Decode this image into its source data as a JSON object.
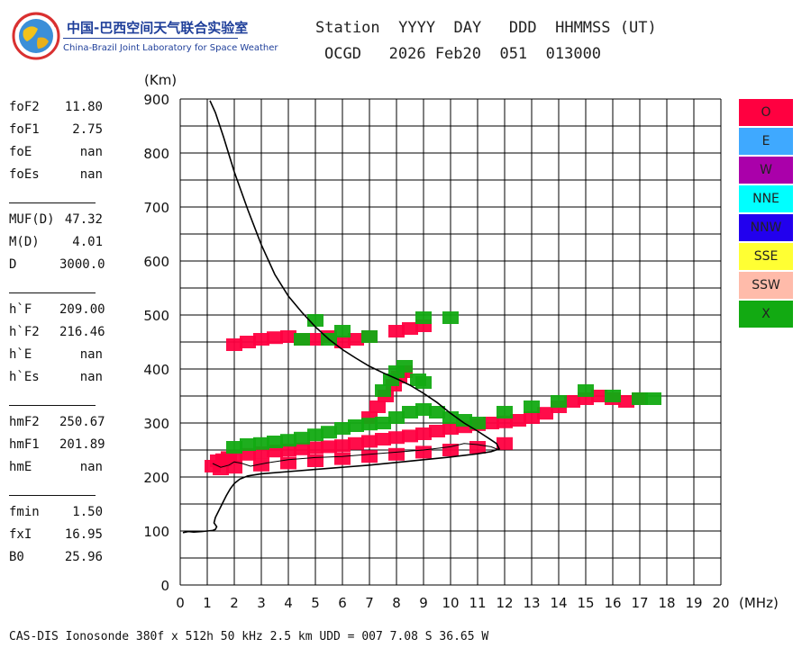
{
  "logo": {
    "cn": "中国-巴西空间天气联合实验室",
    "en": "China-Brazil Joint Laboratory for Space Weather"
  },
  "header": {
    "line1": "Station  YYYY  DAY   DDD  HHMMSS (UT)",
    "line2": "OCGD   2026 Feb20  051  013000"
  },
  "params": [
    {
      "name": "foF2",
      "value": "11.80"
    },
    {
      "name": "foF1",
      "value": "2.75"
    },
    {
      "name": "foE",
      "value": "nan"
    },
    {
      "name": "foEs",
      "value": "nan"
    },
    {
      "name": "MUF(D)",
      "value": "47.32"
    },
    {
      "name": "M(D)",
      "value": "4.01"
    },
    {
      "name": "D",
      "value": "3000.0"
    },
    {
      "name": "h`F",
      "value": "209.00"
    },
    {
      "name": "h`F2",
      "value": "216.46"
    },
    {
      "name": "h`E",
      "value": "nan"
    },
    {
      "name": "h`Es",
      "value": "nan"
    },
    {
      "name": "hmF2",
      "value": "250.67"
    },
    {
      "name": "hmF1",
      "value": "201.89"
    },
    {
      "name": "hmE",
      "value": "nan"
    },
    {
      "name": "fmin",
      "value": "1.50"
    },
    {
      "name": "fxI",
      "value": "16.95"
    },
    {
      "name": "B0",
      "value": "25.96"
    }
  ],
  "legend": [
    {
      "label": "O",
      "color": "#ff0040"
    },
    {
      "label": "E",
      "color": "#3fa9ff"
    },
    {
      "label": "W",
      "color": "#aa00aa"
    },
    {
      "label": "NNE",
      "color": "#00ffff"
    },
    {
      "label": "NNW",
      "color": "#2200ee"
    },
    {
      "label": "SSE",
      "color": "#ffff33"
    },
    {
      "label": "SSW",
      "color": "#ffbbaa"
    },
    {
      "label": "X",
      "color": "#12aa12"
    }
  ],
  "footer": "CAS-DIS Ionosonde 380f x 512h 50 kHz 2.5 km UDD = 007 7.08 S 36.65 W",
  "chart_data": {
    "type": "scatter",
    "xlabel": "(MHz)",
    "ylabel": "(Km)",
    "xlim": [
      0,
      20
    ],
    "ylim": [
      0,
      900
    ],
    "x_ticks": [
      0,
      1,
      2,
      3,
      4,
      5,
      6,
      7,
      8,
      9,
      10,
      11,
      12,
      13,
      14,
      15,
      16,
      17,
      18,
      19,
      20
    ],
    "y_ticks": [
      0,
      100,
      200,
      300,
      400,
      500,
      600,
      700,
      800,
      900
    ],
    "grid": true,
    "legend_position": "right",
    "series": [
      {
        "name": "O",
        "kind": "echo-trace",
        "color": "#ff0040",
        "points": [
          [
            1.2,
            220
          ],
          [
            1.4,
            230
          ],
          [
            1.6,
            232
          ],
          [
            1.8,
            236
          ],
          [
            2.0,
            238
          ],
          [
            2.5,
            242
          ],
          [
            3.0,
            245
          ],
          [
            3.5,
            248
          ],
          [
            4.0,
            250
          ],
          [
            4.5,
            252
          ],
          [
            5.0,
            254
          ],
          [
            5.5,
            256
          ],
          [
            6.0,
            258
          ],
          [
            6.5,
            262
          ],
          [
            7.0,
            266
          ],
          [
            7.5,
            270
          ],
          [
            8.0,
            273
          ],
          [
            8.5,
            276
          ],
          [
            9.0,
            280
          ],
          [
            9.5,
            285
          ],
          [
            10.0,
            290
          ],
          [
            10.5,
            293
          ],
          [
            11.0,
            297
          ],
          [
            11.5,
            300
          ],
          [
            12.0,
            302
          ],
          [
            12.5,
            305
          ],
          [
            13.0,
            310
          ],
          [
            13.5,
            318
          ],
          [
            14.0,
            330
          ],
          [
            14.5,
            340
          ],
          [
            15.0,
            345
          ],
          [
            15.5,
            350
          ],
          [
            16.0,
            345
          ],
          [
            16.5,
            340
          ],
          [
            17.0,
            345
          ],
          [
            1.5,
            215
          ],
          [
            2.0,
            218
          ],
          [
            3.0,
            222
          ],
          [
            4.0,
            226
          ],
          [
            5.0,
            230
          ],
          [
            6.0,
            234
          ],
          [
            7.0,
            238
          ],
          [
            8.0,
            242
          ],
          [
            9.0,
            246
          ],
          [
            10.0,
            250
          ],
          [
            11.0,
            255
          ],
          [
            12.0,
            262
          ],
          [
            7.0,
            310
          ],
          [
            7.3,
            330
          ],
          [
            7.6,
            350
          ],
          [
            7.9,
            370
          ],
          [
            8.1,
            385
          ],
          [
            8.3,
            395
          ],
          [
            2.0,
            445
          ],
          [
            2.5,
            450
          ],
          [
            3.0,
            455
          ],
          [
            3.5,
            458
          ],
          [
            4.0,
            460
          ],
          [
            4.5,
            455
          ],
          [
            5.0,
            455
          ],
          [
            5.5,
            460
          ],
          [
            6.0,
            450
          ],
          [
            6.5,
            455
          ],
          [
            7.0,
            460
          ],
          [
            8.0,
            470
          ],
          [
            8.5,
            475
          ],
          [
            9.0,
            480
          ]
        ]
      },
      {
        "name": "X",
        "kind": "echo-trace",
        "color": "#12aa12",
        "points": [
          [
            2.0,
            255
          ],
          [
            2.5,
            260
          ],
          [
            3.0,
            262
          ],
          [
            3.5,
            265
          ],
          [
            4.0,
            268
          ],
          [
            4.5,
            272
          ],
          [
            5.0,
            278
          ],
          [
            5.5,
            283
          ],
          [
            6.0,
            290
          ],
          [
            6.5,
            295
          ],
          [
            7.0,
            298
          ],
          [
            7.5,
            300
          ],
          [
            8.0,
            310
          ],
          [
            8.5,
            320
          ],
          [
            9.0,
            325
          ],
          [
            9.5,
            320
          ],
          [
            10.0,
            310
          ],
          [
            10.5,
            305
          ],
          [
            11.0,
            300
          ],
          [
            12.0,
            320
          ],
          [
            13.0,
            330
          ],
          [
            14.0,
            340
          ],
          [
            15.0,
            360
          ],
          [
            16.0,
            350
          ],
          [
            17.0,
            345
          ],
          [
            17.5,
            345
          ],
          [
            7.5,
            360
          ],
          [
            7.8,
            380
          ],
          [
            8.0,
            395
          ],
          [
            8.3,
            405
          ],
          [
            8.8,
            380
          ],
          [
            9.0,
            375
          ],
          [
            4.5,
            455
          ],
          [
            5.0,
            490
          ],
          [
            5.5,
            455
          ],
          [
            6.0,
            470
          ],
          [
            7.0,
            460
          ],
          [
            9.0,
            495
          ],
          [
            10.0,
            495
          ]
        ]
      }
    ],
    "profile": {
      "name": "virtual-height curve",
      "color": "#000000",
      "points": [
        [
          0.1,
          97
        ],
        [
          0.3,
          99
        ],
        [
          0.5,
          98
        ],
        [
          0.8,
          99
        ],
        [
          1.0,
          100
        ],
        [
          1.2,
          101
        ],
        [
          1.3,
          103
        ],
        [
          1.35,
          108
        ],
        [
          1.25,
          115
        ],
        [
          1.3,
          125
        ],
        [
          1.4,
          135
        ],
        [
          1.55,
          150
        ],
        [
          1.7,
          165
        ],
        [
          1.85,
          178
        ],
        [
          2.0,
          188
        ],
        [
          2.2,
          196
        ],
        [
          2.5,
          202
        ],
        [
          3.0,
          206
        ],
        [
          4.0,
          210
        ],
        [
          5.0,
          214
        ],
        [
          6.0,
          218
        ],
        [
          7.0,
          222
        ],
        [
          8.0,
          227
        ],
        [
          9.0,
          232
        ],
        [
          10.0,
          237
        ],
        [
          11.0,
          243
        ],
        [
          11.5,
          247
        ],
        [
          11.8,
          252
        ],
        [
          11.7,
          262
        ],
        [
          11.4,
          272
        ],
        [
          11.0,
          285
        ],
        [
          10.5,
          300
        ],
        [
          10.0,
          318
        ],
        [
          9.5,
          338
        ],
        [
          9.0,
          355
        ],
        [
          8.5,
          370
        ],
        [
          8.0,
          382
        ],
        [
          7.5,
          393
        ],
        [
          7.0,
          405
        ],
        [
          6.5,
          420
        ],
        [
          6.0,
          436
        ],
        [
          5.5,
          455
        ],
        [
          5.0,
          478
        ],
        [
          4.5,
          505
        ],
        [
          4.0,
          535
        ],
        [
          3.5,
          575
        ],
        [
          3.0,
          630
        ],
        [
          2.5,
          695
        ],
        [
          2.0,
          765
        ],
        [
          1.6,
          830
        ],
        [
          1.3,
          875
        ],
        [
          1.1,
          897
        ]
      ]
    },
    "model_curve": {
      "name": "model trace",
      "color": "#000000",
      "points": [
        [
          1.2,
          225
        ],
        [
          1.5,
          218
        ],
        [
          1.8,
          222
        ],
        [
          2.0,
          228
        ],
        [
          2.3,
          225
        ],
        [
          2.6,
          220
        ],
        [
          2.8,
          222
        ],
        [
          3.2,
          226
        ],
        [
          4.0,
          232
        ],
        [
          5.0,
          236
        ],
        [
          6.0,
          238
        ],
        [
          7.0,
          242
        ],
        [
          8.0,
          246
        ],
        [
          9.0,
          250
        ],
        [
          10.0,
          256
        ],
        [
          10.5,
          262
        ],
        [
          11.0,
          260
        ],
        [
          11.5,
          256
        ],
        [
          11.8,
          250
        ]
      ]
    }
  }
}
